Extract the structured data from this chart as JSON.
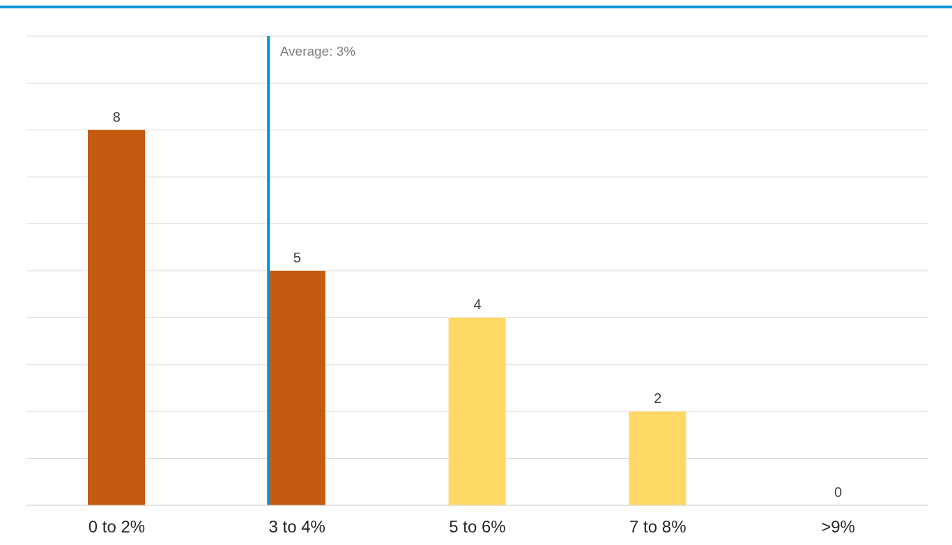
{
  "chart_data": {
    "type": "bar",
    "categories": [
      "0 to 2%",
      "3 to 4%",
      "5 to 6%",
      "7 to 8%",
      ">9%"
    ],
    "values": [
      8,
      5,
      4,
      2,
      0
    ],
    "colors": [
      "#c55a11",
      "#c55a11",
      "#ffd966",
      "#ffd966",
      "#ffd966"
    ],
    "ylim": [
      0,
      10
    ],
    "tick_labels": "x",
    "grid": "y",
    "data_labels": true,
    "legend": false,
    "ref_lines": [
      {
        "axis": "x",
        "value": "3 to 4%",
        "label": "Average: 3%",
        "color": "#0096d6"
      }
    ]
  }
}
